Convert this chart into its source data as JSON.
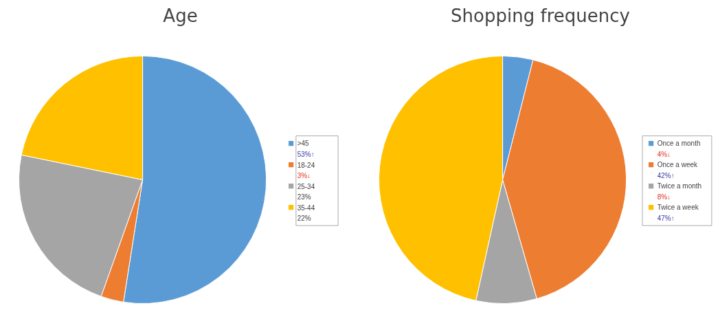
{
  "chart_data": [
    {
      "type": "pie",
      "title": "Age",
      "categories": [
        ">45",
        "18-24",
        "25-34",
        "35-44"
      ],
      "values": [
        53,
        3,
        23,
        22
      ],
      "colors": [
        "#5b9bd5",
        "#ed7d31",
        "#a5a5a5",
        "#ffc000"
      ],
      "value_labels": [
        "53%↑",
        "3%↓",
        "23%",
        "22%"
      ],
      "legend": "right"
    },
    {
      "type": "pie",
      "title": "Shopping frequency",
      "categories": [
        "Once a month",
        "Once a week",
        "Twice a month",
        "Twice a week"
      ],
      "values": [
        4,
        42,
        8,
        47
      ],
      "colors": [
        "#5b9bd5",
        "#ed7d31",
        "#a5a5a5",
        "#ffc000"
      ],
      "value_labels": [
        "4%↓",
        "42%↑",
        "8%↓",
        "47%↑"
      ],
      "legend": "right"
    }
  ]
}
